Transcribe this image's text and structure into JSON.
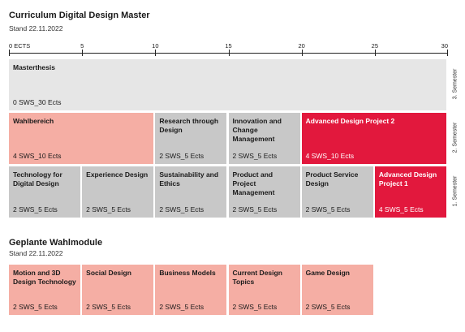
{
  "curriculum": {
    "title": "Curriculum Digital Design Master",
    "date": "Stand 22.11.2022",
    "axis": {
      "ticks": [
        "0 ECTS",
        "5",
        "10",
        "15",
        "20",
        "25",
        "30"
      ],
      "max_ects": 30
    },
    "semesters": [
      {
        "label": "3. Semester",
        "modules": [
          {
            "name": "Masterthesis",
            "meta": "0 SWS_30 Ects",
            "ects": 30,
            "color": "#e6e6e6"
          }
        ]
      },
      {
        "label": "2. Semester",
        "modules": [
          {
            "name": "Wahlbereich",
            "meta": "4 SWS_10 Ects",
            "ects": 10,
            "color": "#f5aea4"
          },
          {
            "name": "Research through Design",
            "meta": "2 SWS_5 Ects",
            "ects": 5,
            "color": "#c8c8c8"
          },
          {
            "name": "Innovation and Change Management",
            "meta": "2 SWS_5 Ects",
            "ects": 5,
            "color": "#c8c8c8"
          },
          {
            "name": "Advanced Design Project 2",
            "meta": "4 SWS_10 Ects",
            "ects": 10,
            "color": "#e2183d"
          }
        ]
      },
      {
        "label": "1. Semester",
        "modules": [
          {
            "name": "Technology for Digital Design",
            "meta": "2 SWS_5 Ects",
            "ects": 5,
            "color": "#c8c8c8"
          },
          {
            "name": "Experience Design",
            "meta": "2 SWS_5 Ects",
            "ects": 5,
            "color": "#c8c8c8"
          },
          {
            "name": "Sustainability and Ethics",
            "meta": "2 SWS_5 Ects",
            "ects": 5,
            "color": "#c8c8c8"
          },
          {
            "name": "Product and Project Management",
            "meta": "2 SWS_5 Ects",
            "ects": 5,
            "color": "#c8c8c8"
          },
          {
            "name": "Product Service Design",
            "meta": "2 SWS_5 Ects",
            "ects": 5,
            "color": "#c8c8c8"
          },
          {
            "name": "Advanced Design Project 1",
            "meta": "4 SWS_5 Ects",
            "ects": 5,
            "color": "#e2183d"
          }
        ]
      }
    ]
  },
  "electives": {
    "title": "Geplante Wahlmodule",
    "date": "Stand 22.11.2022",
    "modules": [
      {
        "name": "Motion and 3D Design Technology",
        "meta": "2 SWS_5 Ects",
        "color": "#f5aea4"
      },
      {
        "name": "Social Design",
        "meta": "2 SWS_5 Ects",
        "color": "#f5aea4"
      },
      {
        "name": "Business Models",
        "meta": "2 SWS_5 Ects",
        "color": "#f5aea4"
      },
      {
        "name": "Current Design Topics",
        "meta": "2 SWS_5 Ects",
        "color": "#f5aea4"
      },
      {
        "name": "Game Design",
        "meta": "2 SWS_5 Ects",
        "color": "#f5aea4"
      }
    ]
  }
}
